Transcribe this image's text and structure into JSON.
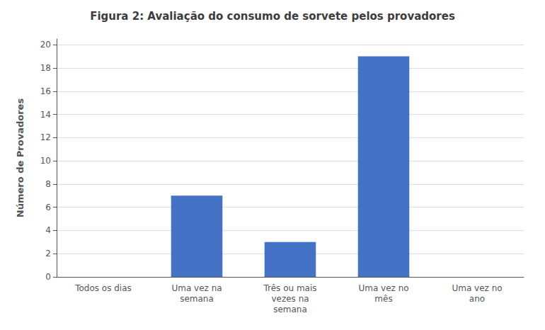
{
  "chart_data": {
    "type": "bar",
    "title": "Figura 2: Avaliação do consumo de sorvete pelos provadores",
    "categories": [
      "Todos os dias",
      "Uma vez na\nsemana",
      "Três ou mais\nvezes na\nsemana",
      "Uma vez no\nmês",
      "Uma vez no\nano"
    ],
    "values": [
      0,
      7,
      3,
      19,
      0
    ],
    "color": "#4472C4",
    "ylabel": "Número de Provadores",
    "ylim": [
      0,
      20.5
    ],
    "yticks": [
      0,
      2,
      4,
      6,
      8,
      10,
      12,
      14,
      16,
      18,
      20
    ],
    "grid": true
  }
}
